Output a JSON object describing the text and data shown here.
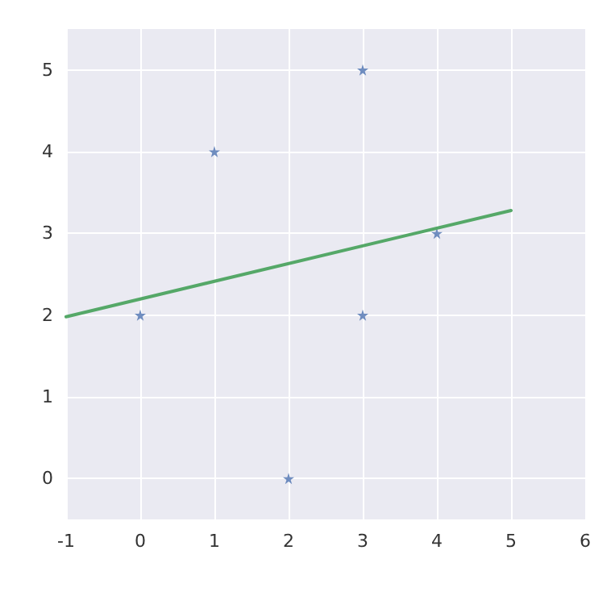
{
  "chart_data": {
    "type": "scatter",
    "xlim": [
      -1,
      6
    ],
    "ylim": [
      -0.5,
      5.5
    ],
    "xticks": [
      -1,
      0,
      1,
      2,
      3,
      4,
      5,
      6
    ],
    "yticks": [
      0,
      1,
      2,
      3,
      4,
      5
    ],
    "grid": true,
    "series": [
      {
        "color": "#4c72b0",
        "marker": "star",
        "x": [
          0,
          1,
          2,
          3,
          3,
          4
        ],
        "values": [
          2,
          4,
          0,
          5,
          2,
          3
        ]
      },
      {
        "type": "line",
        "color": "#55a868",
        "marker": "none",
        "line_style": "solid",
        "x": [
          -1,
          5
        ],
        "values": [
          1.98,
          3.28
        ]
      }
    ]
  }
}
